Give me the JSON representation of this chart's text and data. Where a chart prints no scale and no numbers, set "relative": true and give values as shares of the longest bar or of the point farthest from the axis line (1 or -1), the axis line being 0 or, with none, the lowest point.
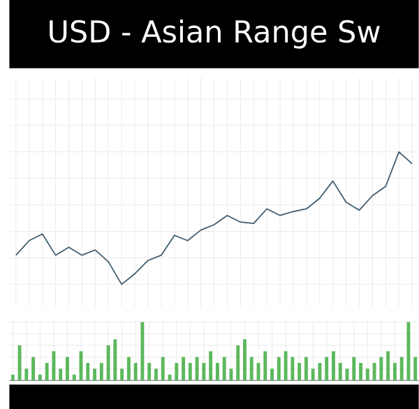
{
  "chart_data": [
    {
      "type": "line",
      "title": "USD - Asian Range Sw",
      "relative": true,
      "grid": true,
      "color": "#3d5a6e",
      "categories": [
        null,
        null,
        null,
        null,
        null,
        null,
        null,
        null,
        null,
        null,
        null,
        null,
        null,
        null,
        null,
        null,
        null,
        null,
        null,
        null,
        null,
        null,
        null,
        null,
        null,
        null,
        null,
        null,
        null,
        null,
        null
      ],
      "values": [
        0.22,
        0.33,
        0.38,
        0.22,
        0.28,
        0.22,
        0.26,
        0.17,
        0,
        0.08,
        0.18,
        0.22,
        0.37,
        0.33,
        0.41,
        0.45,
        0.52,
        0.47,
        0.46,
        0.57,
        0.52,
        0.55,
        0.57,
        0.65,
        0.78,
        0.62,
        0.56,
        0.67,
        0.74,
        1.0,
        0.91
      ]
    },
    {
      "type": "bar",
      "relative": true,
      "grid": true,
      "color": "#5cb85c",
      "categories": [
        null,
        null,
        null,
        null,
        null,
        null,
        null,
        null,
        null,
        null,
        null,
        null,
        null,
        null,
        null,
        null,
        null,
        null,
        null,
        null,
        null,
        null,
        null,
        null,
        null,
        null,
        null,
        null,
        null,
        null,
        null,
        null,
        null,
        null,
        null,
        null,
        null,
        null,
        null,
        null,
        null,
        null,
        null,
        null,
        null,
        null,
        null,
        null,
        null,
        null,
        null,
        null,
        null,
        null,
        null,
        null,
        null,
        null,
        null,
        null
      ],
      "values": [
        0.1,
        0.6,
        0.2,
        0.4,
        0.1,
        0.3,
        0.5,
        0.2,
        0.4,
        0.1,
        0.5,
        0.3,
        0.2,
        0.3,
        0.6,
        0.7,
        0.2,
        0.4,
        0.3,
        1.0,
        0.3,
        0.2,
        0.4,
        0.1,
        0.3,
        0.4,
        0.3,
        0.4,
        0.3,
        0.5,
        0.3,
        0.4,
        0.2,
        0.6,
        0.7,
        0.4,
        0.3,
        0.5,
        0.2,
        0.4,
        0.5,
        0.4,
        0.3,
        0.4,
        0.2,
        0.3,
        0.4,
        0.5,
        0.3,
        0.2,
        0.4,
        0.3,
        0.2,
        0.3,
        0.4,
        0.5,
        0.3,
        0.4,
        1.0,
        0.4
      ]
    }
  ]
}
